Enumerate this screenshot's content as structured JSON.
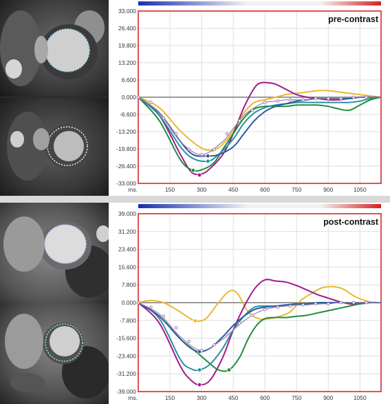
{
  "colors": {
    "yellow": "#e8b830",
    "purple": "#a0198c",
    "green": "#1f8c3c",
    "teal": "#2a8fa0",
    "blue": "#2b5a9c",
    "grey": "#9a7fa8",
    "zero_line": "#7a7a7a",
    "border": "#d8262b"
  },
  "icons": [
    "myocardial-contour-overlay",
    "color-gradient-bar"
  ],
  "chart_data": [
    {
      "type": "line",
      "title": "pre-contrast",
      "x_unit_label": "ms.",
      "xlim": [
        0,
        1150
      ],
      "ylim": [
        -33.0,
        33.0
      ],
      "x_ticks": [
        150,
        300,
        450,
        600,
        750,
        900,
        1050
      ],
      "y_ticks": [
        "33.000",
        "26.400",
        "19.800",
        "13.200",
        "6.600",
        "0.000",
        "-6.600",
        "-13.200",
        "-19.800",
        "-26.400",
        "-33.000"
      ],
      "series": [
        {
          "color_key": "yellow",
          "x": [
            0,
            100,
            200,
            300,
            360,
            400,
            450,
            500,
            550,
            600,
            650,
            700,
            750,
            800,
            850,
            900,
            950,
            1000,
            1050,
            1100,
            1150
          ],
          "y": [
            0,
            -4,
            -13,
            -19.5,
            -20,
            -18,
            -13,
            -6,
            -2,
            -1,
            0,
            1,
            1.5,
            2,
            2.5,
            2.5,
            2,
            1.5,
            1,
            0.5,
            0
          ],
          "markers": [
            [
              350,
              -20.3
            ]
          ]
        },
        {
          "color_key": "purple",
          "x": [
            0,
            100,
            200,
            250,
            290,
            330,
            400,
            450,
            500,
            550,
            580,
            620,
            650,
            700,
            750,
            800,
            850,
            900,
            950,
            1000,
            1050,
            1100,
            1150
          ],
          "y": [
            0,
            -7,
            -22,
            -28.5,
            -29.5,
            -28,
            -22,
            -14,
            -4,
            3.5,
            5.5,
            5.5,
            5,
            3,
            1,
            0,
            -0.5,
            -1,
            -1,
            -0.5,
            0,
            0,
            0
          ],
          "markers": [
            [
              290,
              -29.8
            ]
          ]
        },
        {
          "color_key": "green",
          "x": [
            0,
            100,
            200,
            260,
            310,
            360,
            400,
            450,
            500,
            550,
            600,
            650,
            700,
            750,
            800,
            850,
            900,
            950,
            1000,
            1050,
            1100,
            1150
          ],
          "y": [
            0,
            -9,
            -24,
            -28,
            -27.5,
            -25,
            -20,
            -14,
            -8,
            -4.5,
            -3.5,
            -3.5,
            -3.5,
            -3,
            -3,
            -3,
            -3.5,
            -4.5,
            -5,
            -3,
            -1,
            0
          ],
          "markers": [
            [
              260,
              -28
            ]
          ]
        },
        {
          "color_key": "teal",
          "x": [
            0,
            100,
            200,
            260,
            330,
            380,
            450,
            500,
            550,
            600,
            650,
            700,
            750,
            800,
            850,
            900,
            950,
            1000,
            1050,
            1100,
            1150
          ],
          "y": [
            0,
            -7,
            -19,
            -23.5,
            -24.5,
            -22,
            -16,
            -10,
            -6,
            -4,
            -3,
            -2.5,
            -2,
            -2,
            -2,
            -2,
            -2,
            -2,
            -1.5,
            -0.5,
            0
          ],
          "markers": [
            [
              330,
              -24.5
            ]
          ]
        },
        {
          "color_key": "blue",
          "x": [
            0,
            100,
            200,
            260,
            330,
            380,
            450,
            500,
            550,
            600,
            650,
            700,
            750,
            800,
            850,
            900,
            950,
            1000,
            1050,
            1100,
            1150
          ],
          "y": [
            0,
            -6,
            -17,
            -22,
            -22.5,
            -22,
            -19,
            -14,
            -9,
            -5.5,
            -3.5,
            -2.5,
            -1.5,
            -1,
            -0.5,
            -0.5,
            -0.5,
            -0.5,
            0,
            0,
            0
          ],
          "markers": [
            [
              330,
              -22.5
            ]
          ]
        },
        {
          "color_key": "grey",
          "x": [
            0,
            100,
            200,
            300,
            400,
            450,
            500,
            550,
            600,
            650,
            700,
            750,
            800,
            850,
            900,
            950,
            1000,
            1050,
            1100,
            1150
          ],
          "y": [
            0,
            -6,
            -17,
            -22,
            -17,
            -12,
            -7,
            -4,
            -2,
            -1.5,
            -1,
            -1,
            -1,
            -0.5,
            -0.5,
            -0.5,
            0,
            0,
            0,
            0
          ],
          "markers": [
            [
              0,
              0
            ],
            [
              60,
              -2
            ],
            [
              120,
              -8
            ],
            [
              180,
              -14
            ],
            [
              240,
              -20
            ],
            [
              300,
              -22
            ],
            [
              360,
              -20
            ],
            [
              420,
              -14
            ],
            [
              480,
              -9
            ],
            [
              540,
              -5
            ],
            [
              600,
              -2
            ],
            [
              660,
              -1.5
            ],
            [
              720,
              -1
            ],
            [
              780,
              -1
            ],
            [
              840,
              -0.5
            ],
            [
              900,
              -0.5
            ],
            [
              960,
              -0.5
            ],
            [
              1020,
              0
            ],
            [
              1080,
              0
            ]
          ]
        }
      ]
    },
    {
      "type": "line",
      "title": "post-contrast",
      "x_unit_label": "ms.",
      "xlim": [
        0,
        1150
      ],
      "ylim": [
        -39.0,
        39.0
      ],
      "x_ticks": [
        150,
        300,
        450,
        600,
        750,
        900,
        1050
      ],
      "y_ticks": [
        "39.000",
        "31.200",
        "23.400",
        "15.600",
        "7.800",
        "0.000",
        "-7.800",
        "-15.600",
        "-23.400",
        "-31.200",
        "-39.000"
      ],
      "series": [
        {
          "color_key": "yellow",
          "x": [
            0,
            60,
            120,
            180,
            230,
            270,
            320,
            380,
            430,
            470,
            520,
            570,
            620,
            670,
            720,
            770,
            820,
            870,
            920,
            970,
            1020,
            1070,
            1120,
            1150
          ],
          "y": [
            0,
            1,
            0,
            -3,
            -6,
            -8,
            -7,
            0,
            5,
            4,
            -4,
            -7,
            -7,
            -6,
            -4,
            1,
            4,
            6.5,
            7,
            6,
            3,
            1,
            0,
            0
          ],
          "markers": [
            [
              270,
              -8
            ]
          ]
        },
        {
          "color_key": "purple",
          "x": [
            0,
            100,
            200,
            250,
            290,
            340,
            400,
            450,
            500,
            550,
            600,
            650,
            700,
            750,
            800,
            850,
            900,
            950,
            1000,
            1050,
            1100,
            1150
          ],
          "y": [
            0,
            -9,
            -28,
            -34,
            -36,
            -34,
            -24,
            -12,
            -2,
            6,
            10,
            9.5,
            9,
            7.5,
            5.5,
            3.5,
            2,
            0.5,
            -0.5,
            -0.5,
            0,
            0
          ],
          "markers": [
            [
              290,
              -36
            ]
          ]
        },
        {
          "color_key": "green",
          "x": [
            0,
            100,
            200,
            280,
            330,
            380,
            430,
            480,
            520,
            560,
            600,
            650,
            700,
            750,
            800,
            850,
            900,
            950,
            1000,
            1050,
            1100,
            1150
          ],
          "y": [
            0,
            -6,
            -16,
            -22,
            -26,
            -29.5,
            -29.5,
            -24,
            -16,
            -10,
            -7,
            -6.5,
            -6.5,
            -6,
            -5.5,
            -4.5,
            -3.5,
            -2.5,
            -1.5,
            -0.5,
            0,
            0
          ],
          "markers": [
            [
              430,
              -29.5
            ]
          ]
        },
        {
          "color_key": "teal",
          "x": [
            0,
            100,
            200,
            250,
            290,
            340,
            400,
            450,
            500,
            550,
            600,
            650,
            700,
            750,
            800,
            850,
            900,
            950,
            1000,
            1050,
            1100,
            1150
          ],
          "y": [
            0,
            -7,
            -25,
            -29,
            -29.5,
            -27,
            -20,
            -12,
            -6,
            -2,
            -1.5,
            -1.5,
            -1,
            -1,
            -0.5,
            -0.5,
            0,
            0,
            0,
            0,
            0,
            0
          ],
          "markers": [
            [
              290,
              -29.5
            ]
          ]
        },
        {
          "color_key": "blue",
          "x": [
            0,
            100,
            200,
            250,
            290,
            340,
            400,
            450,
            500,
            550,
            600,
            650,
            700,
            750,
            800,
            850,
            900,
            950,
            1000,
            1050,
            1100,
            1150
          ],
          "y": [
            0,
            -6,
            -16,
            -20,
            -21.5,
            -20,
            -15,
            -10,
            -6,
            -3,
            -2,
            -1.5,
            -1,
            -0.5,
            -0.5,
            0,
            0,
            0,
            0,
            0,
            0,
            0
          ],
          "markers": [
            [
              290,
              -21.5
            ]
          ]
        },
        {
          "color_key": "grey",
          "x": [
            0,
            100,
            200,
            300,
            400,
            450,
            500,
            550,
            600,
            650,
            700,
            750,
            800,
            850,
            900,
            950,
            1000,
            1050,
            1100,
            1150
          ],
          "y": [
            0,
            -5,
            -15,
            -21,
            -16,
            -12,
            -8,
            -5,
            -3,
            -2,
            -1.5,
            -1,
            -1,
            -0.5,
            -0.5,
            0,
            0,
            0,
            0,
            0
          ],
          "markers": [
            [
              0,
              0
            ],
            [
              60,
              -2
            ],
            [
              120,
              -6
            ],
            [
              180,
              -11
            ],
            [
              240,
              -17
            ],
            [
              300,
              -21
            ],
            [
              360,
              -18.5
            ],
            [
              420,
              -14
            ],
            [
              480,
              -9
            ],
            [
              540,
              -5.5
            ],
            [
              600,
              -3
            ],
            [
              660,
              -2
            ],
            [
              720,
              -1.5
            ],
            [
              780,
              -1
            ],
            [
              840,
              -0.5
            ],
            [
              900,
              -0.5
            ],
            [
              960,
              0
            ],
            [
              1020,
              0
            ],
            [
              1080,
              0
            ]
          ]
        }
      ]
    }
  ]
}
